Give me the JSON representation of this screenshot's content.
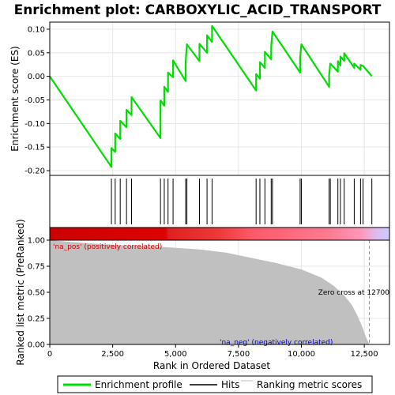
{
  "chart_data": {
    "type": "line",
    "title": "Enrichment plot: CARBOXYLIC_ACID_TRANSPORT",
    "xlabel": "Rank in Ordered Dataset",
    "ylabel_top": "Enrichment score (ES)",
    "ylabel_bottom": "Ranked list metric (PreRanked)",
    "xlim": [
      0,
      13500
    ],
    "xticks": [
      "0",
      "2,500",
      "5,000",
      "7,500",
      "10,000",
      "12,500"
    ],
    "xtick_values": [
      0,
      2500,
      5000,
      7500,
      10000,
      12500
    ],
    "es_ylim": [
      -0.21,
      0.115
    ],
    "es_yticks": [
      "-0.20",
      "-0.15",
      "-0.10",
      "-0.05",
      "0.00",
      "0.05",
      "0.10"
    ],
    "es_ytick_values": [
      -0.2,
      -0.15,
      -0.1,
      -0.05,
      0.0,
      0.05,
      0.1
    ],
    "metric_ylim": [
      0,
      1.0
    ],
    "metric_yticks": [
      "0.00",
      "0.25",
      "0.50",
      "0.75",
      "1.00"
    ],
    "metric_ytick_values": [
      0,
      0.25,
      0.5,
      0.75,
      1.0
    ],
    "hits": [
      2450,
      2600,
      2800,
      3050,
      3250,
      4400,
      4550,
      4700,
      4900,
      5400,
      5450,
      5950,
      6250,
      6450,
      8200,
      8350,
      8550,
      8800,
      8850,
      9950,
      10000,
      11100,
      11150,
      11450,
      11550,
      11700,
      12100,
      12350,
      12450,
      12800
    ],
    "es_points": [
      [
        0,
        0.0
      ],
      [
        2450,
        -0.192
      ],
      [
        2450,
        -0.152
      ],
      [
        2600,
        -0.16
      ],
      [
        2600,
        -0.121
      ],
      [
        2800,
        -0.133
      ],
      [
        2800,
        -0.094
      ],
      [
        3050,
        -0.108
      ],
      [
        3050,
        -0.071
      ],
      [
        3250,
        -0.082
      ],
      [
        3250,
        -0.044
      ],
      [
        4400,
        -0.131
      ],
      [
        4400,
        -0.051
      ],
      [
        4550,
        -0.062
      ],
      [
        4550,
        -0.022
      ],
      [
        4700,
        -0.033
      ],
      [
        4700,
        0.008
      ],
      [
        4900,
        -0.002
      ],
      [
        4900,
        0.034
      ],
      [
        5400,
        -0.01
      ],
      [
        5400,
        0.03
      ],
      [
        5450,
        0.068
      ],
      [
        5950,
        0.032
      ],
      [
        5950,
        0.069
      ],
      [
        6250,
        0.05
      ],
      [
        6250,
        0.087
      ],
      [
        6450,
        0.073
      ],
      [
        6450,
        0.107
      ],
      [
        8200,
        -0.03
      ],
      [
        8200,
        0.005
      ],
      [
        8350,
        -0.005
      ],
      [
        8350,
        0.03
      ],
      [
        8550,
        0.018
      ],
      [
        8550,
        0.052
      ],
      [
        8800,
        0.036
      ],
      [
        8800,
        0.062
      ],
      [
        8850,
        0.095
      ],
      [
        9950,
        0.008
      ],
      [
        9950,
        0.04
      ],
      [
        10000,
        0.068
      ],
      [
        11100,
        -0.022
      ],
      [
        11100,
        0.002
      ],
      [
        11150,
        0.027
      ],
      [
        11450,
        0.01
      ],
      [
        11450,
        0.032
      ],
      [
        11550,
        0.023
      ],
      [
        11550,
        0.042
      ],
      [
        11700,
        0.033
      ],
      [
        11700,
        0.049
      ],
      [
        12100,
        0.018
      ],
      [
        12100,
        0.027
      ],
      [
        12350,
        0.014
      ],
      [
        12350,
        0.024
      ],
      [
        12450,
        0.022
      ],
      [
        12800,
        0.0
      ]
    ],
    "metric_points": [
      [
        0,
        1.0
      ],
      [
        1500,
        0.97
      ],
      [
        3000,
        0.95
      ],
      [
        4500,
        0.935
      ],
      [
        6000,
        0.91
      ],
      [
        7000,
        0.88
      ],
      [
        8000,
        0.83
      ],
      [
        9000,
        0.78
      ],
      [
        10000,
        0.72
      ],
      [
        10800,
        0.64
      ],
      [
        11300,
        0.56
      ],
      [
        11700,
        0.47
      ],
      [
        12000,
        0.38
      ],
      [
        12200,
        0.29
      ],
      [
        12400,
        0.18
      ],
      [
        12550,
        0.08
      ],
      [
        12700,
        0.0
      ]
    ],
    "zero_cross": 12700,
    "annotations": {
      "pos": "'na_pos' (positively correlated)",
      "neg": "'na_neg' (negatively correlated)",
      "zero": "Zero cross at 12700"
    },
    "legend": [
      "Enrichment profile",
      "Hits",
      "Ranking metric scores"
    ],
    "colors": {
      "es_line": "#00dd00",
      "hits": "#000000",
      "metric_fill": "#c0c0c0",
      "pos_text": "#cc0000",
      "neg_text": "#0000cc",
      "zero_line": "#999999"
    }
  }
}
